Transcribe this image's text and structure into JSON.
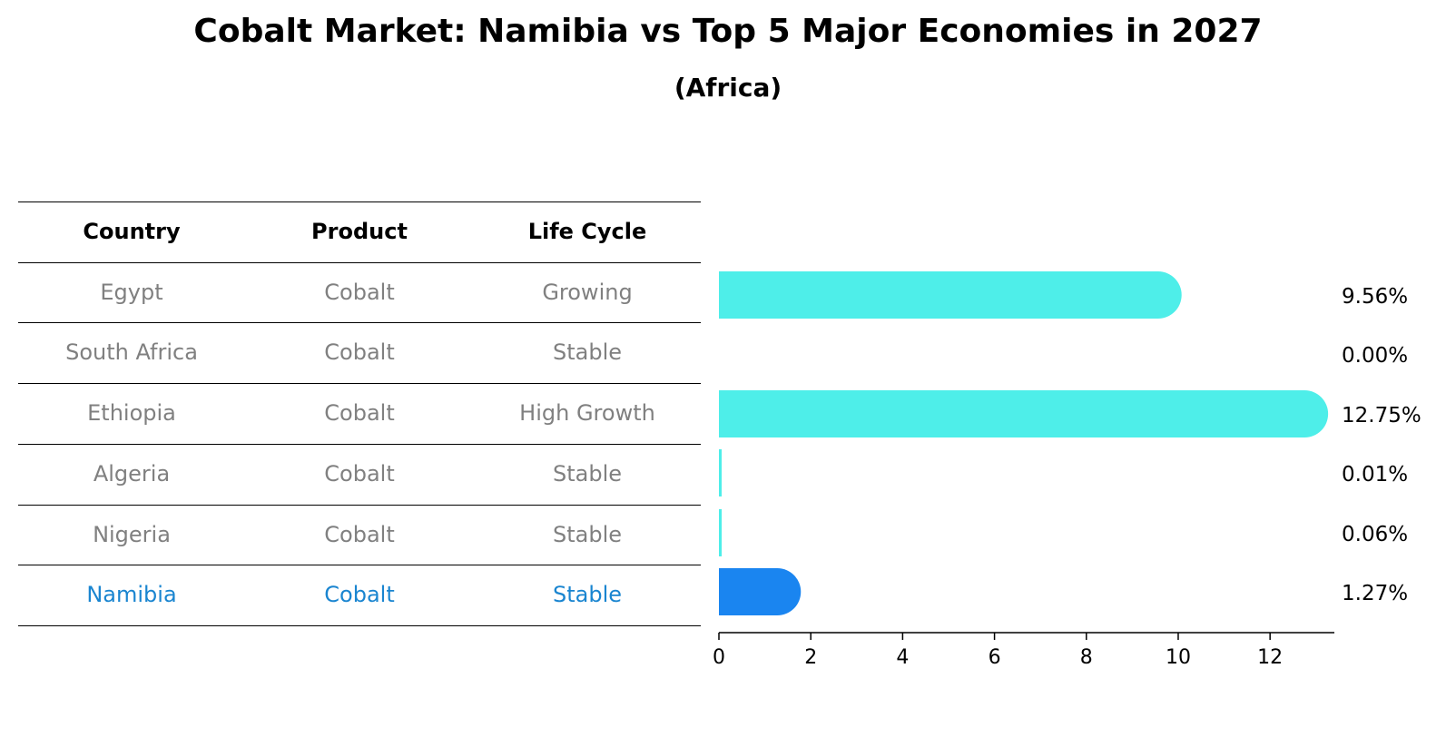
{
  "title": "Cobalt Market: Namibia vs Top 5 Major Economies in 2027",
  "subtitle": "(Africa)",
  "table": {
    "headers": [
      "Country",
      "Product",
      "Life Cycle"
    ],
    "rows": [
      {
        "country": "Egypt",
        "product": "Cobalt",
        "life_cycle": "Growing",
        "highlight": false
      },
      {
        "country": "South Africa",
        "product": "Cobalt",
        "life_cycle": "Stable",
        "highlight": false
      },
      {
        "country": "Ethiopia",
        "product": "Cobalt",
        "life_cycle": "High Growth",
        "highlight": false
      },
      {
        "country": "Algeria",
        "product": "Cobalt",
        "life_cycle": "Stable",
        "highlight": false
      },
      {
        "country": "Nigeria",
        "product": "Cobalt",
        "life_cycle": "Stable",
        "highlight": false
      },
      {
        "country": "Namibia",
        "product": "Cobalt",
        "life_cycle": "Stable",
        "highlight": true
      }
    ]
  },
  "colors": {
    "bar": "#4eeee9",
    "highlight_bar": "#1a85f0",
    "row_text": "#808080",
    "highlight_text": "#1a85d0",
    "rule": "#000000"
  },
  "chart_data": {
    "type": "bar",
    "orientation": "horizontal",
    "categories": [
      "Egypt",
      "South Africa",
      "Ethiopia",
      "Algeria",
      "Nigeria",
      "Namibia"
    ],
    "values": [
      9.56,
      0.0,
      12.75,
      0.01,
      0.06,
      1.27
    ],
    "value_labels": [
      "9.56%",
      "0.00%",
      "12.75%",
      "0.01%",
      "0.06%",
      "1.27%"
    ],
    "highlight_index": 5,
    "xlim": [
      0,
      13.4
    ],
    "xticks": [
      0,
      2,
      4,
      6,
      8,
      10,
      12
    ],
    "xlabel": "",
    "ylabel": "",
    "grid": false,
    "legend": "none"
  }
}
